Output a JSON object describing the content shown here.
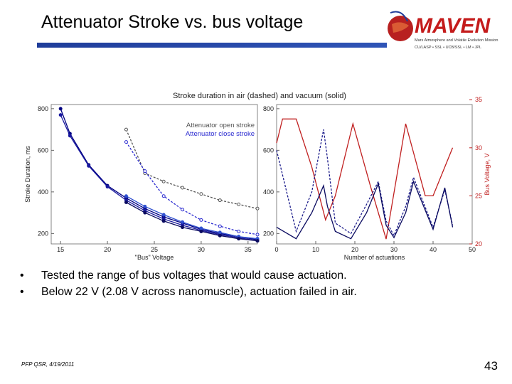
{
  "slide": {
    "title": "Attenuator Stroke vs. bus voltage",
    "bullets": [
      "Tested the range of bus voltages that would cause actuation.",
      "Below 22 V (2.08 V across nanomuscle), actuation failed in air."
    ],
    "bullet_symbol": "•",
    "footer": "PFP QSR, 4/19/2011",
    "page_number": "43"
  },
  "logo": {
    "name": "MAVEN",
    "tagline": "Mars Atmosphere and Volatile Evolution Mission",
    "partners": "CU/LASP • SSL • UCB/SSL • LM • JPL",
    "colors": {
      "text": "#c41b1b",
      "planet": "#b82020"
    }
  },
  "chart_data": [
    {
      "type": "line",
      "title": "Stroke duration in air (dashed) and vacuum (solid)",
      "xlabel": "\"Bus\" Voltage",
      "ylabel": "Stroke Duration, ms",
      "xlim": [
        14,
        36
      ],
      "ylim": [
        150,
        820
      ],
      "xticks": [
        15,
        20,
        25,
        30,
        35
      ],
      "yticks": [
        200,
        400,
        600,
        800
      ],
      "legend_position": "top-right",
      "series": [
        {
          "name": "Attenuator open stroke",
          "color": "#555555",
          "style": "dashed",
          "x": [
            22,
            24,
            26,
            28,
            30,
            32,
            34,
            36
          ],
          "y": [
            700,
            490,
            450,
            420,
            390,
            360,
            340,
            320
          ]
        },
        {
          "name": "Attenuator close stroke",
          "color": "#2a2ad0",
          "style": "dashed",
          "x": [
            22,
            24,
            26,
            28,
            30,
            32,
            34,
            36
          ],
          "y": [
            640,
            500,
            380,
            315,
            265,
            235,
            210,
            195
          ]
        },
        {
          "color": "#000080",
          "style": "solid",
          "x": [
            15,
            16,
            18,
            20,
            22,
            24,
            26,
            28,
            30,
            32,
            34,
            36
          ],
          "y": [
            800,
            680,
            530,
            430,
            370,
            320,
            280,
            250,
            220,
            200,
            185,
            170
          ]
        },
        {
          "color": "#1a1aa0",
          "style": "solid",
          "x": [
            15,
            16,
            18,
            20,
            22,
            24,
            26,
            28,
            30,
            32,
            34,
            36
          ],
          "y": [
            770,
            670,
            525,
            425,
            360,
            310,
            270,
            240,
            215,
            195,
            180,
            165
          ]
        },
        {
          "color": "#3050d0",
          "style": "solid",
          "x": [
            22,
            24,
            26,
            28,
            30,
            32,
            34,
            36
          ],
          "y": [
            380,
            330,
            290,
            255,
            225,
            205,
            185,
            175
          ]
        },
        {
          "color": "#0a0a60",
          "style": "solid",
          "x": [
            22,
            24,
            26,
            28,
            30,
            32,
            34,
            36
          ],
          "y": [
            350,
            300,
            260,
            230,
            210,
            190,
            175,
            165
          ]
        }
      ]
    },
    {
      "type": "line",
      "xlabel": "Number of actuations",
      "ylabel": "",
      "y2label": "Bus Voltage, V",
      "xlim": [
        0,
        50
      ],
      "ylim": [
        150,
        820
      ],
      "y2lim": [
        20,
        34.5
      ],
      "xticks": [
        0,
        10,
        20,
        30,
        40,
        50
      ],
      "yticks": [
        200,
        400,
        600,
        800
      ],
      "y2ticks": [
        20,
        25,
        30,
        35
      ],
      "series": [
        {
          "color": "#c02020",
          "style": "solid",
          "axis": "right",
          "x": [
            0,
            1.5,
            5,
            9,
            12.5,
            15,
            19.5,
            24,
            28,
            33,
            38,
            40,
            43,
            45
          ],
          "y": [
            30.5,
            33,
            33,
            28,
            22.5,
            25,
            32.5,
            26,
            20.5,
            32.5,
            25,
            25,
            28,
            30
          ]
        },
        {
          "color": "#1a1a8a",
          "style": "dashed",
          "axis": "left",
          "x": [
            0,
            5,
            9,
            12,
            13,
            15,
            19,
            23,
            26,
            28,
            30,
            33,
            35,
            40,
            43,
            45
          ],
          "y": [
            600,
            210,
            400,
            700,
            560,
            250,
            200,
            340,
            450,
            260,
            190,
            330,
            470,
            230,
            410,
            240
          ]
        },
        {
          "color": "#0a0a60",
          "style": "solid",
          "axis": "left",
          "x": [
            0,
            5,
            9,
            12,
            13,
            15,
            19,
            23,
            26,
            28,
            30,
            33,
            35,
            40,
            43,
            45
          ],
          "y": [
            230,
            175,
            300,
            430,
            330,
            210,
            175,
            300,
            440,
            240,
            180,
            300,
            450,
            220,
            420,
            230
          ]
        }
      ]
    }
  ]
}
